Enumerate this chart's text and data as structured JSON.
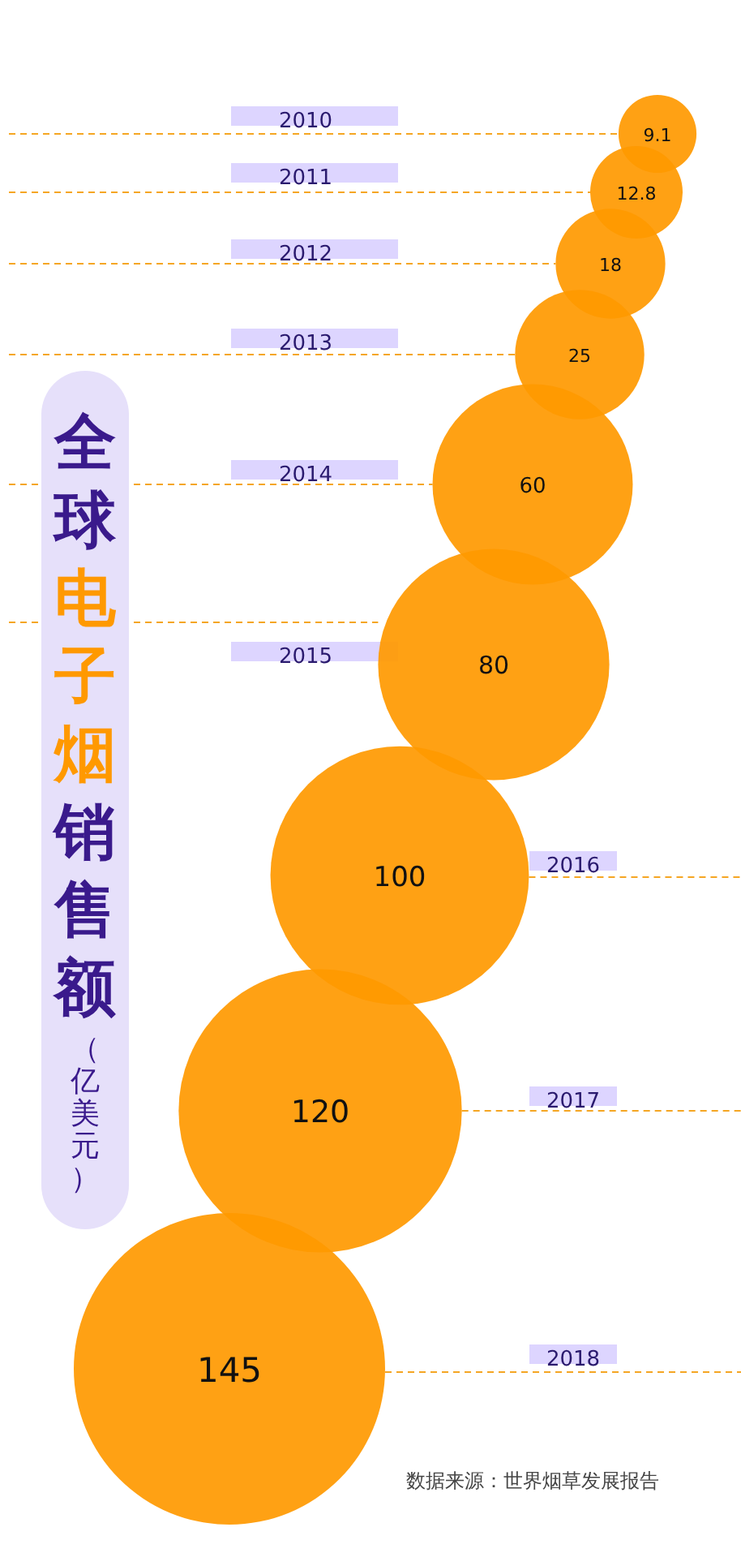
{
  "chart_data": {
    "type": "other",
    "title": "全球电子烟销售额",
    "subtitle": "（亿美元）",
    "categories": [
      "2010",
      "2011",
      "2012",
      "2013",
      "2014",
      "2015",
      "2016",
      "2017",
      "2018"
    ],
    "values": [
      9.1,
      12.8,
      18,
      25,
      60,
      80,
      100,
      120,
      145
    ],
    "value_labels": [
      "9.1",
      "12.8",
      "18",
      "25",
      "60",
      "80",
      "100",
      "120",
      "145"
    ],
    "color": "#ff9900",
    "annotations": [
      "数据来源：世界烟草发展报告"
    ]
  }
}
